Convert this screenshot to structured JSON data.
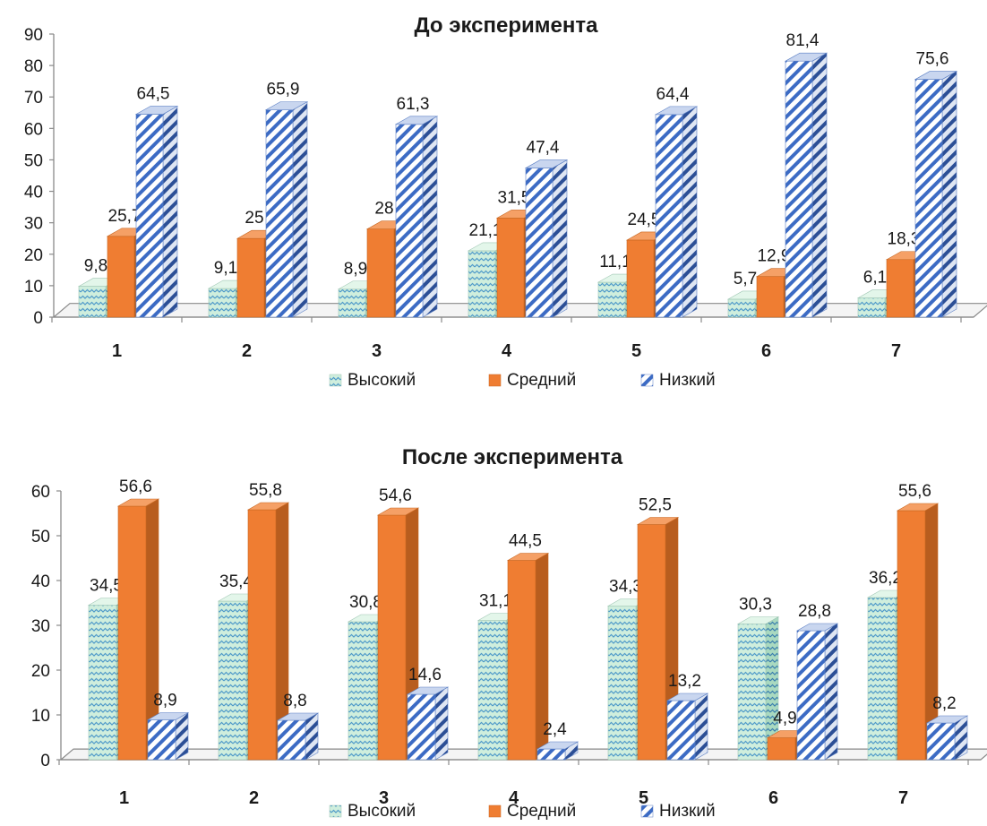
{
  "chart_data": [
    {
      "type": "bar",
      "title": "До эксперимента",
      "categories": [
        "1",
        "2",
        "3",
        "4",
        "5",
        "6",
        "7"
      ],
      "ylim": [
        0,
        90
      ],
      "yticks": [
        0,
        10,
        20,
        30,
        40,
        50,
        60,
        70,
        80,
        90
      ],
      "grid": false,
      "legend_position": "bottom",
      "series": [
        {
          "name": "Высокий",
          "values": [
            9.8,
            9.1,
            8.9,
            21.1,
            11.1,
            5.7,
            6.1
          ],
          "labels": [
            "9,8",
            "9,1",
            "8,9",
            "21,1",
            "11,1",
            "5,7",
            "6,1"
          ]
        },
        {
          "name": "Средний",
          "values": [
            25.7,
            25,
            28,
            31.5,
            24.5,
            12.9,
            18.3
          ],
          "labels": [
            "25,7",
            "25",
            "28",
            "31,5",
            "24,5",
            "12,9",
            "18,3"
          ]
        },
        {
          "name": "Низкий",
          "values": [
            64.5,
            65.9,
            61.3,
            47.4,
            64.4,
            81.4,
            75.6
          ],
          "labels": [
            "64,5",
            "65,9",
            "61,3",
            "47,4",
            "64,4",
            "81,4",
            "75,6"
          ]
        }
      ]
    },
    {
      "type": "bar",
      "title": "После эксперимента",
      "categories": [
        "1",
        "2",
        "3",
        "4",
        "5",
        "6",
        "7"
      ],
      "ylim": [
        0,
        60
      ],
      "yticks": [
        0,
        10,
        20,
        30,
        40,
        50,
        60
      ],
      "grid": false,
      "legend_position": "bottom",
      "series": [
        {
          "name": "Высокий",
          "values": [
            34.5,
            35.4,
            30.8,
            31.1,
            34.3,
            30.3,
            36.2
          ],
          "labels": [
            "34,5",
            "35,4",
            "30,8",
            "31,1",
            "34,3",
            "30,3",
            "36,2"
          ]
        },
        {
          "name": "Средний",
          "values": [
            56.6,
            55.8,
            54.6,
            44.5,
            52.5,
            4.9,
            55.6
          ],
          "labels": [
            "56,6",
            "55,8",
            "54,6",
            "44,5",
            "52,5",
            "4,9",
            "55,6"
          ]
        },
        {
          "name": "Низкий",
          "values": [
            8.9,
            8.8,
            14.6,
            2.4,
            13.2,
            28.8,
            8.2
          ],
          "labels": [
            "8,9",
            "8,8",
            "14,6",
            "2,4",
            "13,2",
            "28,8",
            "8,2"
          ]
        }
      ]
    }
  ],
  "colors": {
    "high_fill": "#cfeedd",
    "high_stripe": "#4f9ac9",
    "mid_fill": "#ef7d32",
    "mid_top": "#f5a066",
    "mid_side": "#b85d1e",
    "low_fill": "#ffffff",
    "low_stripe": "#3c6bc4",
    "axis": "#8a8a8a",
    "text": "#1a1a1a"
  }
}
